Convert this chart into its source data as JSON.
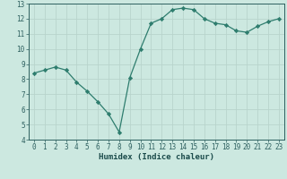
{
  "x": [
    0,
    1,
    2,
    3,
    4,
    5,
    6,
    7,
    8,
    9,
    10,
    11,
    12,
    13,
    14,
    15,
    16,
    17,
    18,
    19,
    20,
    21,
    22,
    23
  ],
  "y": [
    8.4,
    8.6,
    8.8,
    8.6,
    7.8,
    7.2,
    6.5,
    5.7,
    4.5,
    8.1,
    10.0,
    11.7,
    12.0,
    12.6,
    12.7,
    12.6,
    12.0,
    11.7,
    11.6,
    11.2,
    11.1,
    11.5,
    11.8,
    12.0
  ],
  "line_color": "#2e7d6e",
  "marker": "D",
  "marker_size": 2.2,
  "bg_color": "#cce8e0",
  "grid_color": "#b8d4cc",
  "tick_color": "#2e6060",
  "xlabel": "Humidex (Indice chaleur)",
  "xlim": [
    -0.5,
    23.5
  ],
  "ylim": [
    4,
    13
  ],
  "yticks": [
    4,
    5,
    6,
    7,
    8,
    9,
    10,
    11,
    12,
    13
  ],
  "xticks": [
    0,
    1,
    2,
    3,
    4,
    5,
    6,
    7,
    8,
    9,
    10,
    11,
    12,
    13,
    14,
    15,
    16,
    17,
    18,
    19,
    20,
    21,
    22,
    23
  ],
  "font_color": "#1a4a4a",
  "tick_fontsize": 5.5,
  "label_fontsize": 6.5
}
